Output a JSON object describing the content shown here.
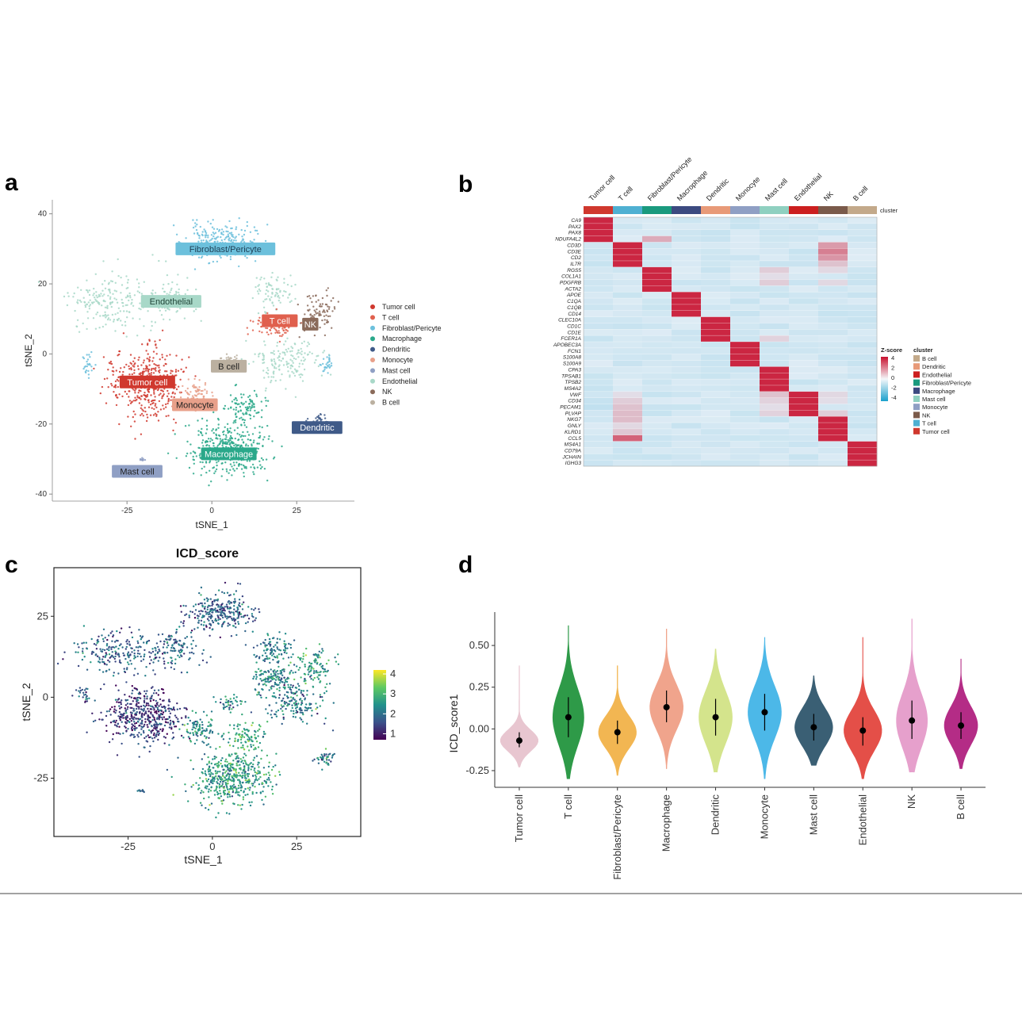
{
  "panels": {
    "a": "a",
    "b": "b",
    "c": "c",
    "d": "d"
  },
  "chart_data": [
    {
      "panel": "a",
      "type": "scatter",
      "subtype": "tSNE cluster map",
      "xlabel": "tSNE_1",
      "ylabel": "tSNE_2",
      "xticks": [
        -25,
        0,
        25
      ],
      "yticks": [
        40,
        20,
        0,
        -20,
        -40
      ],
      "xlim": [
        -47,
        42
      ],
      "ylim": [
        -42,
        44
      ],
      "legend": [
        {
          "name": "Tumor cell",
          "color": "#d0382e"
        },
        {
          "name": "T cell",
          "color": "#e0604e"
        },
        {
          "name": "Fibroblast/Pericyte",
          "color": "#6cc0dc"
        },
        {
          "name": "Macrophage",
          "color": "#2aa88a"
        },
        {
          "name": "Dendritic",
          "color": "#3f5a88"
        },
        {
          "name": "Monocyte",
          "color": "#e8a08a"
        },
        {
          "name": "Mast cell",
          "color": "#8f9fc4"
        },
        {
          "name": "Endothelial",
          "color": "#a8d8c8"
        },
        {
          "name": "NK",
          "color": "#8a6a5a"
        },
        {
          "name": "B cell",
          "color": "#bbb0a0"
        }
      ],
      "clusters": [
        {
          "name": "Fibroblast/Pericyte",
          "cx": 2,
          "cy": 32,
          "sx": 9,
          "sy": 5,
          "n": 230,
          "color": "#6cc0dc"
        },
        {
          "name": "Endothelial",
          "cx": -30,
          "cy": 15,
          "sx": 11,
          "sy": 7,
          "n": 200,
          "color": "#a8d8c8"
        },
        {
          "name": "Endothelial",
          "cx": -12,
          "cy": 16,
          "sx": 7,
          "sy": 6,
          "n": 100,
          "color": "#a8d8c8"
        },
        {
          "name": "Endothelial",
          "cx": 18,
          "cy": 18,
          "sx": 6,
          "sy": 5,
          "n": 80,
          "color": "#a8d8c8"
        },
        {
          "name": "Endothelial",
          "cx": 22,
          "cy": -2,
          "sx": 9,
          "sy": 6,
          "n": 160,
          "color": "#a8d8c8"
        },
        {
          "name": "Tumor cell",
          "cx": -20,
          "cy": -8,
          "sx": 10,
          "sy": 9,
          "n": 420,
          "color": "#d0382e"
        },
        {
          "name": "T cell",
          "cx": 18,
          "cy": 8,
          "sx": 6,
          "sy": 3,
          "n": 100,
          "color": "#e0604e"
        },
        {
          "name": "NK",
          "cx": 32,
          "cy": 12,
          "sx": 5,
          "sy": 6,
          "n": 90,
          "color": "#8a6a5a"
        },
        {
          "name": "B cell",
          "cx": 5,
          "cy": -2,
          "sx": 3,
          "sy": 2,
          "n": 35,
          "color": "#bbb0a0"
        },
        {
          "name": "Monocyte",
          "cx": -5,
          "cy": -12,
          "sx": 4,
          "sy": 4,
          "n": 80,
          "color": "#e8a08a"
        },
        {
          "name": "Macrophage",
          "cx": 5,
          "cy": -27,
          "sx": 10,
          "sy": 7,
          "n": 420,
          "color": "#2aa88a"
        },
        {
          "name": "Macrophage",
          "cx": 10,
          "cy": -15,
          "sx": 6,
          "sy": 4,
          "n": 90,
          "color": "#2aa88a"
        },
        {
          "name": "Dendritic",
          "cx": 31,
          "cy": -19,
          "sx": 3,
          "sy": 2,
          "n": 35,
          "color": "#3f5a88"
        },
        {
          "name": "Fibroblast/Pericyte",
          "cx": 34,
          "cy": -3,
          "sx": 2,
          "sy": 2,
          "n": 30,
          "color": "#6cc0dc"
        },
        {
          "name": "Fibroblast/Pericyte",
          "cx": -36,
          "cy": -3,
          "sx": 2,
          "sy": 3,
          "n": 25,
          "color": "#6cc0dc"
        },
        {
          "name": "Mast cell",
          "cx": -20,
          "cy": -30,
          "sx": 1.2,
          "sy": 0.6,
          "n": 10,
          "color": "#8f9fc4"
        }
      ],
      "labels": [
        {
          "text": "Fibroblast/Pericyte",
          "x": 4,
          "y": 30,
          "fill": "#6cc0dc",
          "color": "#1f3f55"
        },
        {
          "text": "Endothelial",
          "x": -12,
          "y": 15,
          "fill": "#a8d8c8",
          "color": "#1f4437"
        },
        {
          "text": "T cell",
          "x": 20,
          "y": 9.5,
          "fill": "#e0604e",
          "color": "#ffffff"
        },
        {
          "text": "NK",
          "x": 29,
          "y": 8.5,
          "fill": "#8a6a5a",
          "color": "#ffffff"
        },
        {
          "text": "B cell",
          "x": 5,
          "y": -3.5,
          "fill": "#bbb0a0",
          "color": "#222222"
        },
        {
          "text": "Tumor cell",
          "x": -19,
          "y": -8,
          "fill": "#d0382e",
          "color": "#ffffff"
        },
        {
          "text": "Monocyte",
          "x": -5,
          "y": -14.5,
          "fill": "#e8a08a",
          "color": "#222222"
        },
        {
          "text": "Dendritic",
          "x": 31,
          "y": -21,
          "fill": "#3f5a88",
          "color": "#ffffff"
        },
        {
          "text": "Macrophage",
          "x": 5,
          "y": -28.5,
          "fill": "#2aa88a",
          "color": "#ffffff"
        },
        {
          "text": "Mast cell",
          "x": -22,
          "y": -33.5,
          "fill": "#8f9fc4",
          "color": "#222222"
        }
      ]
    },
    {
      "panel": "b",
      "type": "heatmap",
      "columns": [
        "Tumor cell",
        "T cell",
        "Fibroblast/Pericyte",
        "Macrophage",
        "Dendritic",
        "Monocyte",
        "Mast cell",
        "Endothelial",
        "NK",
        "B cell"
      ],
      "column_colors": [
        "#d0382e",
        "#4fb0d2",
        "#1a9a7e",
        "#3c4a80",
        "#e89a78",
        "#8f9fc4",
        "#8fd0c0",
        "#cc1f1f",
        "#7a5a4a",
        "#c3a98a"
      ],
      "cluster_bar_label": "cluster",
      "genes": [
        "CA9",
        "PAX2",
        "PAX8",
        "NDUFA4L2",
        "CD3D",
        "CD3E",
        "CD2",
        "IL7R",
        "RGS5",
        "COL1A1",
        "PDGFRB",
        "ACTA2",
        "APOE",
        "C1QA",
        "C1QB",
        "CD14",
        "CLEC10A",
        "CD1C",
        "CD1E",
        "FCER1A",
        "APOBEC3A",
        "FCN1",
        "S100A8",
        "S100A9",
        "CPA3",
        "TPSAB1",
        "TPSB2",
        "MS4A2",
        "VWF",
        "CD34",
        "PECAM1",
        "PLVAP",
        "NKG7",
        "GNLY",
        "KLRD1",
        "CCL5",
        "MS4A1",
        "CD79A",
        "JCHAIN",
        "IGHG3"
      ],
      "extra_cells": [
        {
          "gene": "NDUFA4L2",
          "col": "Fibroblast/Pericyte",
          "z": 1.2
        },
        {
          "gene": "CD3D",
          "col": "NK",
          "z": 1.5
        },
        {
          "gene": "CD3E",
          "col": "NK",
          "z": 2.0
        },
        {
          "gene": "CD2",
          "col": "NK",
          "z": 1.6
        },
        {
          "gene": "IL7R",
          "col": "NK",
          "z": 0.8
        },
        {
          "gene": "RGS5",
          "col": "Mast cell",
          "z": 0.6
        },
        {
          "gene": "COL1A1",
          "col": "Mast cell",
          "z": 0.3
        },
        {
          "gene": "PDGFRB",
          "col": "Mast cell",
          "z": 0.6
        },
        {
          "gene": "RGS5",
          "col": "NK",
          "z": 0.4
        },
        {
          "gene": "PDGFRB",
          "col": "NK",
          "z": 0.4
        },
        {
          "gene": "FCER1A",
          "col": "Mast cell",
          "z": 0.5
        },
        {
          "gene": "VWF",
          "col": "T cell",
          "z": 0.3
        },
        {
          "gene": "CD34",
          "col": "T cell",
          "z": 0.6
        },
        {
          "gene": "PECAM1",
          "col": "T cell",
          "z": 0.8
        },
        {
          "gene": "PLVAP",
          "col": "T cell",
          "z": 0.9
        },
        {
          "gene": "NKG7",
          "col": "T cell",
          "z": 0.9
        },
        {
          "gene": "GNLY",
          "col": "T cell",
          "z": 0.4
        },
        {
          "gene": "KLRD1",
          "col": "T cell",
          "z": 0.7
        },
        {
          "gene": "CCL5",
          "col": "T cell",
          "z": 2.5
        },
        {
          "gene": "VWF",
          "col": "Mast cell",
          "z": 0.8
        },
        {
          "gene": "CD34",
          "col": "Mast cell",
          "z": 0.5
        },
        {
          "gene": "PECAM1",
          "col": "Mast cell",
          "z": 0.3
        },
        {
          "gene": "PLVAP",
          "col": "Mast cell",
          "z": 0.5
        },
        {
          "gene": "VWF",
          "col": "NK",
          "z": 0.4
        },
        {
          "gene": "CD34",
          "col": "NK",
          "z": 0.3
        },
        {
          "gene": "PLVAP",
          "col": "NK",
          "z": 0.6
        },
        {
          "gene": "CD34",
          "col": "Tumor cell",
          "z": -0.6
        },
        {
          "gene": "PECAM1",
          "col": "Tumor cell",
          "z": -0.7
        },
        {
          "gene": "VWF",
          "col": "B cell",
          "z": -0.4
        },
        {
          "gene": "CD34",
          "col": "B cell",
          "z": -0.4
        }
      ],
      "zscore_legend": {
        "title": "Z-score",
        "ticks": [
          "4",
          "2",
          "0",
          "-2",
          "-4"
        ]
      },
      "cluster_legend": {
        "title": "cluster",
        "items": [
          "B cell",
          "Dendritic",
          "Endothelial",
          "Fibroblast/Pericyte",
          "Macrophage",
          "Mast cell",
          "Monocyte",
          "NK",
          "T cell",
          "Tumor cell"
        ]
      }
    },
    {
      "panel": "c",
      "type": "scatter",
      "subtype": "tSNE score map",
      "title": "ICD_score",
      "xlabel": "tSNE_1",
      "ylabel": "tSNE_2",
      "xticks": [
        -25,
        0,
        25
      ],
      "yticks": [
        25,
        0,
        -25
      ],
      "xlim": [
        -47,
        44
      ],
      "ylim": [
        -43,
        40
      ],
      "colorbar": {
        "ticks": [
          4,
          3,
          2,
          1
        ],
        "min": 0.7,
        "max": 4.2,
        "colors": [
          "#440154",
          "#3b528b",
          "#21918c",
          "#5ec962",
          "#fde725"
        ]
      },
      "clusters": [
        {
          "name": "Fibroblast/Pericyte",
          "cx": 2,
          "cy": 26,
          "sx": 9,
          "sy": 5,
          "n": 280,
          "score": 1.7
        },
        {
          "name": "Endothelial",
          "cx": -28,
          "cy": 14,
          "sx": 12,
          "sy": 6,
          "n": 220,
          "score": 1.8
        },
        {
          "name": "Endothelial",
          "cx": -12,
          "cy": 15,
          "sx": 7,
          "sy": 5,
          "n": 110,
          "score": 1.9
        },
        {
          "name": "Endothelial",
          "cx": 18,
          "cy": 14,
          "sx": 6,
          "sy": 5,
          "n": 110,
          "score": 2.2
        },
        {
          "name": "Endothelial",
          "cx": 24,
          "cy": -1,
          "sx": 9,
          "sy": 6,
          "n": 190,
          "score": 2.1
        },
        {
          "name": "Tumor cell",
          "cx": -20,
          "cy": -6,
          "sx": 10,
          "sy": 8,
          "n": 470,
          "score": 1.3
        },
        {
          "name": "T cell",
          "cx": 18,
          "cy": 6,
          "sx": 6,
          "sy": 3,
          "n": 110,
          "score": 2.4
        },
        {
          "name": "NK",
          "cx": 30,
          "cy": 10,
          "sx": 5,
          "sy": 5,
          "n": 100,
          "score": 2.6
        },
        {
          "name": "B cell",
          "cx": 5,
          "cy": -2,
          "sx": 3,
          "sy": 2,
          "n": 40,
          "score": 2.3
        },
        {
          "name": "Monocyte",
          "cx": -4,
          "cy": -10,
          "sx": 4,
          "sy": 4,
          "n": 90,
          "score": 2.4
        },
        {
          "name": "Macrophage",
          "cx": 6,
          "cy": -25,
          "sx": 10,
          "sy": 7,
          "n": 480,
          "score": 2.6
        },
        {
          "name": "Macrophage",
          "cx": 10,
          "cy": -13,
          "sx": 6,
          "sy": 4,
          "n": 100,
          "score": 2.8
        },
        {
          "name": "Dendritic",
          "cx": 33,
          "cy": -19,
          "sx": 3,
          "sy": 2,
          "n": 40,
          "score": 2.0
        },
        {
          "name": "Fibroblast/Pericyte",
          "cx": -38,
          "cy": 0,
          "sx": 2,
          "sy": 3,
          "n": 25,
          "score": 1.6
        },
        {
          "name": "Mast cell",
          "cx": -21,
          "cy": -29,
          "sx": 1.2,
          "sy": 0.6,
          "n": 10,
          "score": 1.8
        }
      ]
    },
    {
      "panel": "d",
      "type": "violin",
      "ylabel": "ICD_score1",
      "yticks": [
        0.5,
        0.25,
        0.0,
        -0.25
      ],
      "ytick_labels": [
        "0.50",
        "0.25",
        "0.00",
        "-0.25"
      ],
      "ylim": [
        -0.35,
        0.7
      ],
      "categories": [
        "Tumor cell",
        "T cell",
        "Fibroblast/Pericyte",
        "Macrophage",
        "Dendritic",
        "Monocyte",
        "Mast cell",
        "Endothelial",
        "NK",
        "B cell"
      ],
      "series": [
        {
          "name": "Tumor cell",
          "color": "#e8c6d0",
          "mean": -0.07,
          "lo": -0.11,
          "hi": -0.02,
          "min": -0.23,
          "max": 0.38,
          "width": 0.85
        },
        {
          "name": "T cell",
          "color": "#2e9a48",
          "mean": 0.07,
          "lo": -0.05,
          "hi": 0.19,
          "min": -0.3,
          "max": 0.62,
          "width": 0.7
        },
        {
          "name": "Fibroblast/Pericyte",
          "color": "#f2b652",
          "mean": -0.02,
          "lo": -0.09,
          "hi": 0.05,
          "min": -0.28,
          "max": 0.38,
          "width": 0.85
        },
        {
          "name": "Macrophage",
          "color": "#f0a48c",
          "mean": 0.13,
          "lo": 0.04,
          "hi": 0.23,
          "min": -0.24,
          "max": 0.6,
          "width": 0.75
        },
        {
          "name": "Dendritic",
          "color": "#d4e48c",
          "mean": 0.07,
          "lo": -0.04,
          "hi": 0.18,
          "min": -0.26,
          "max": 0.48,
          "width": 0.75
        },
        {
          "name": "Monocyte",
          "color": "#4cb8e8",
          "mean": 0.1,
          "lo": -0.01,
          "hi": 0.21,
          "min": -0.3,
          "max": 0.55,
          "width": 0.75
        },
        {
          "name": "Mast cell",
          "color": "#3a5f74",
          "mean": 0.01,
          "lo": -0.07,
          "hi": 0.09,
          "min": -0.22,
          "max": 0.32,
          "width": 0.85
        },
        {
          "name": "Endothelial",
          "color": "#e44f48",
          "mean": -0.01,
          "lo": -0.1,
          "hi": 0.07,
          "min": -0.3,
          "max": 0.55,
          "width": 0.85
        },
        {
          "name": "NK",
          "color": "#e6a0cc",
          "mean": 0.05,
          "lo": -0.06,
          "hi": 0.17,
          "min": -0.26,
          "max": 0.66,
          "width": 0.7
        },
        {
          "name": "B cell",
          "color": "#b42c86",
          "mean": 0.02,
          "lo": -0.06,
          "hi": 0.1,
          "min": -0.24,
          "max": 0.42,
          "width": 0.75
        }
      ]
    }
  ]
}
